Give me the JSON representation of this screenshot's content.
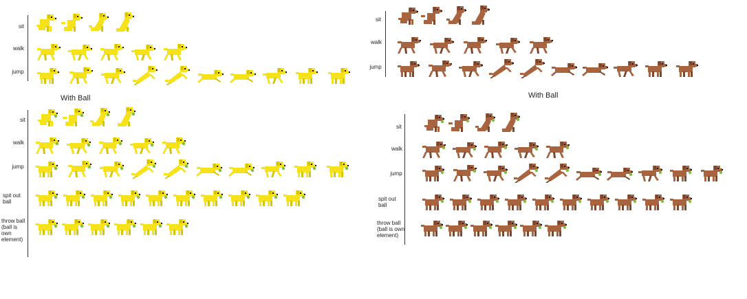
{
  "colors": {
    "yellow_body": "#F5E21B",
    "yellow_shade": "#D9C400",
    "brown_body": "#A8643E",
    "brown_shade": "#7E452A",
    "ball": "#7BC043",
    "eye": "#111111",
    "line": "#333333"
  },
  "headings": {
    "yellow_with_ball": "With Ball",
    "brown_with_ball": "With Ball"
  },
  "sheets": {
    "yellow_no_ball": {
      "rows": [
        {
          "label": "sit",
          "frames": [
            "sit",
            "sit2",
            "sit3",
            "sit4"
          ]
        },
        {
          "label": "walk",
          "frames": [
            "walk",
            "walk2",
            "walk",
            "walk2",
            "walk"
          ]
        },
        {
          "label": "jump",
          "frames": [
            "stand",
            "walk",
            "walk2",
            "jumpup",
            "jumpup",
            "leap",
            "leap",
            "walk2",
            "stand",
            "stand"
          ]
        }
      ]
    },
    "yellow_with_ball": {
      "rows": [
        {
          "label": "sit",
          "frames": [
            "sit",
            "sit2",
            "sit3",
            "sit4"
          ]
        },
        {
          "label": "walk",
          "frames": [
            "walk",
            "walk2",
            "walk",
            "walk2",
            "walk"
          ]
        },
        {
          "label": "jump",
          "frames": [
            "stand",
            "walk",
            "walk2",
            "jumpup",
            "jumpup",
            "leap",
            "leap",
            "walk2",
            "stand",
            "stand"
          ]
        },
        {
          "label": "spit out ball",
          "frames": [
            "stand",
            "stand",
            "stand",
            "stand",
            "stand",
            "stand",
            "stand",
            "stand",
            "stand",
            "stand"
          ]
        },
        {
          "label": "throw ball (ball is own element)",
          "frames": [
            "stand",
            "stand",
            "stand",
            "stand",
            "stand",
            "stand"
          ]
        }
      ]
    },
    "brown_no_ball": {
      "rows": [
        {
          "label": "sit",
          "frames": [
            "sit",
            "sit2",
            "sit3",
            "sit4"
          ]
        },
        {
          "label": "walk",
          "frames": [
            "walk",
            "walk2",
            "walk",
            "walk2",
            "walk"
          ]
        },
        {
          "label": "jump",
          "frames": [
            "stand",
            "walk",
            "walk2",
            "jumpup",
            "jumpup",
            "leap",
            "leap",
            "walk2",
            "stand",
            "stand"
          ]
        }
      ]
    },
    "brown_with_ball": {
      "rows": [
        {
          "label": "sit",
          "frames": [
            "sit",
            "sit2",
            "sit3",
            "sit4"
          ]
        },
        {
          "label": "walk",
          "frames": [
            "walk",
            "walk2",
            "walk",
            "walk2",
            "walk"
          ]
        },
        {
          "label": "jump",
          "frames": [
            "stand",
            "walk",
            "walk2",
            "jumpup",
            "jumpup",
            "leap",
            "leap",
            "walk2",
            "stand",
            "stand"
          ]
        },
        {
          "label": "spit out ball",
          "frames": [
            "stand",
            "stand",
            "stand",
            "stand",
            "stand",
            "stand",
            "stand",
            "stand",
            "stand",
            "stand"
          ]
        },
        {
          "label": "throw ball (ball is own element)",
          "frames": [
            "stand",
            "stand",
            "stand",
            "stand",
            "stand",
            "stand"
          ]
        }
      ]
    }
  }
}
